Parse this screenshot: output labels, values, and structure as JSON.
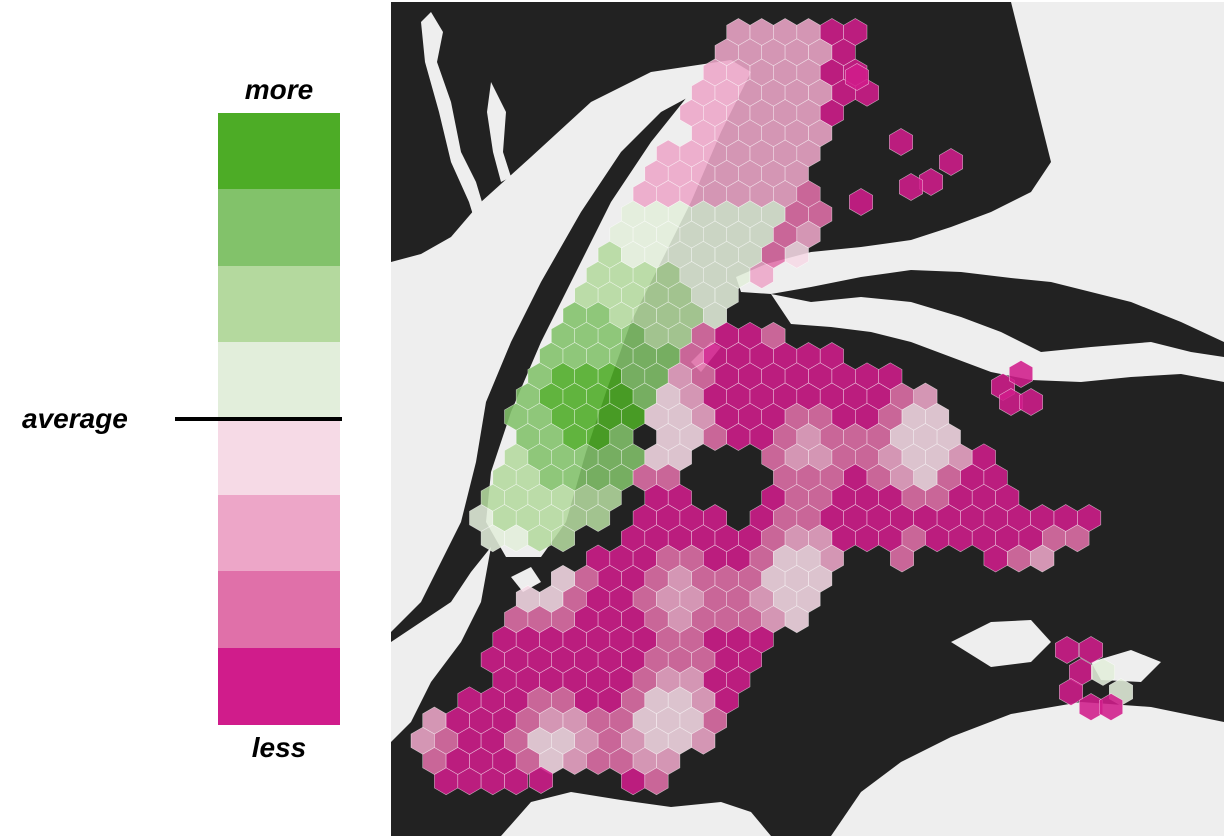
{
  "legend": {
    "top_label": "more",
    "bottom_label": "less",
    "middle_label": "average",
    "scale_colors": [
      "#4dac26",
      "#82c26a",
      "#b4d99e",
      "#e2eedb",
      "#f6dae6",
      "#eda6c8",
      "#e070a9",
      "#d01c8b"
    ]
  },
  "map": {
    "water_color": "#222222",
    "land_color": "#eeeeee",
    "hex_stroke": "#ffffff"
  }
}
